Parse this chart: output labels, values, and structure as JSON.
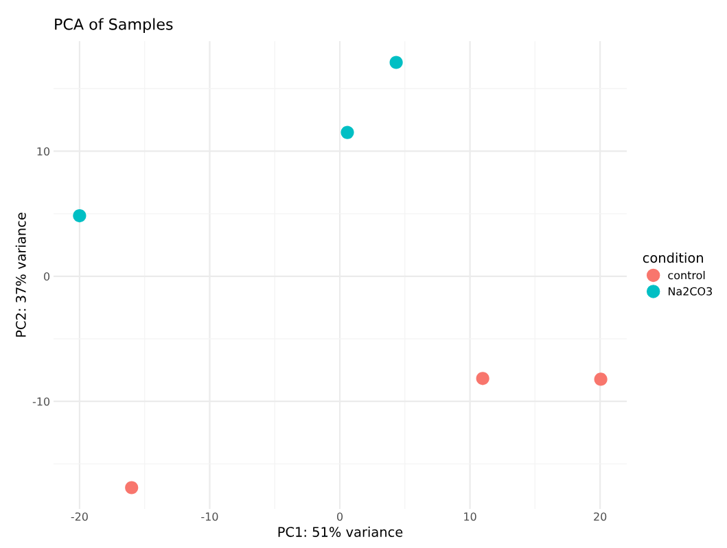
{
  "chart_data": {
    "type": "scatter",
    "title": "PCA of Samples",
    "xlabel": "PC1: 51% variance",
    "ylabel": "PC2: 37% variance",
    "legend_title": "condition",
    "series": [
      {
        "name": "control",
        "color": "#f8766d",
        "x": [
          -16.0,
          10.98,
          20.05
        ],
        "values": [
          -16.9,
          -8.17,
          -8.23
        ]
      },
      {
        "name": "Na2CO3",
        "color": "#00bfc4",
        "x": [
          -20.0,
          0.58,
          4.33
        ],
        "values": [
          4.84,
          11.5,
          17.1
        ]
      }
    ],
    "xlim": [
      -22.0,
      22.05
    ],
    "ylim": [
      -18.6,
      18.8
    ],
    "xticks": [
      -20,
      {
        "value": -15,
        "label": null
      },
      -10,
      {
        "value": -5,
        "label": null
      },
      0,
      {
        "value": 5,
        "label": null
      },
      10,
      {
        "value": 15,
        "label": null
      },
      20
    ],
    "yticks": [
      {
        "value": -15,
        "label": null
      },
      -10,
      {
        "value": -5,
        "label": null
      },
      0,
      {
        "value": 5,
        "label": null
      },
      10,
      {
        "value": 15,
        "label": null
      }
    ],
    "grid": true,
    "legend": "right",
    "marker": "circle"
  }
}
